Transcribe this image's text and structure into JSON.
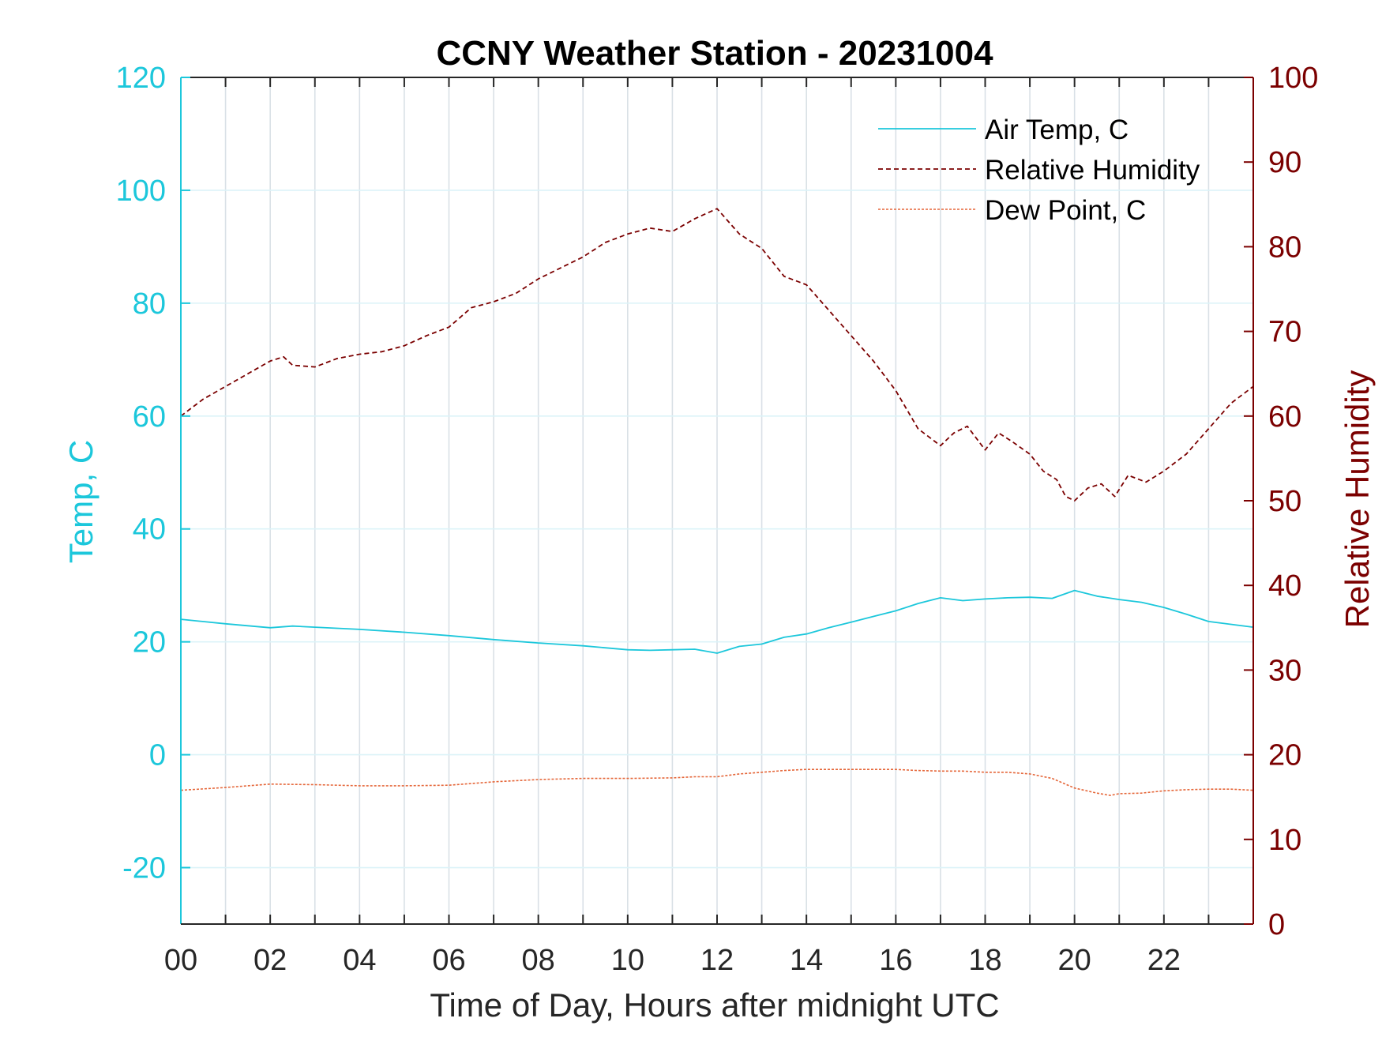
{
  "chart_data": {
    "type": "line",
    "title": "CCNY Weather Station - 20231004",
    "xlabel": "Time of Day, Hours after midnight UTC",
    "ylabel_left": "Temp, C",
    "ylabel_right": "Relative Humidity",
    "xlim": [
      0,
      24
    ],
    "ylim_left": [
      -30,
      120
    ],
    "ylim_right": [
      0,
      100
    ],
    "x_ticks": [
      "00",
      "02",
      "04",
      "06",
      "08",
      "10",
      "12",
      "14",
      "16",
      "18",
      "20",
      "22"
    ],
    "left_ticks": [
      "-20",
      "0",
      "20",
      "40",
      "60",
      "80",
      "100",
      "120"
    ],
    "right_ticks": [
      "0",
      "10",
      "20",
      "30",
      "40",
      "50",
      "60",
      "70",
      "80",
      "90",
      "100"
    ],
    "grid": true,
    "legend_position": "top-right",
    "colors": {
      "air_temp": "#1CC7DB",
      "relative_humidity": "#7B0000",
      "dew_point": "#E5673A",
      "grid": "#D9E0E6"
    },
    "series": [
      {
        "name": "Air Temp, C",
        "axis": "left",
        "style": "solid",
        "x": [
          0,
          1,
          2,
          2.5,
          3,
          4,
          5,
          6,
          7,
          8,
          9,
          10,
          10.5,
          11,
          11.5,
          12,
          12.5,
          13,
          13.5,
          14,
          14.5,
          15,
          15.5,
          16,
          16.5,
          17,
          17.5,
          18,
          18.5,
          19,
          19.5,
          20,
          20.5,
          21,
          21.5,
          22,
          22.5,
          23,
          23.5,
          24
        ],
        "values": [
          24,
          23.2,
          22.5,
          22.8,
          22.6,
          22.2,
          21.7,
          21.1,
          20.4,
          19.8,
          19.3,
          18.6,
          18.5,
          18.6,
          18.7,
          18,
          19.2,
          19.6,
          20.8,
          21.4,
          22.5,
          23.5,
          24.5,
          25.5,
          26.8,
          27.8,
          27.3,
          27.6,
          27.8,
          27.9,
          27.7,
          29.1,
          28.1,
          27.5,
          27,
          26.1,
          24.9,
          23.6,
          23.1,
          22.6
        ]
      },
      {
        "name": "Relative Humidity",
        "axis": "right",
        "style": "dashed",
        "x": [
          0,
          0.5,
          1,
          1.5,
          2,
          2.3,
          2.5,
          3,
          3.5,
          4,
          4.5,
          5,
          5.5,
          6,
          6.5,
          7,
          7.5,
          8,
          8.5,
          9,
          9.5,
          10,
          10.5,
          11,
          11.5,
          12,
          12.5,
          13,
          13.5,
          14,
          14.5,
          15,
          15.5,
          16,
          16.5,
          17,
          17.3,
          17.6,
          18,
          18.3,
          18.6,
          19,
          19.3,
          19.6,
          19.8,
          20,
          20.3,
          20.6,
          20.9,
          21.2,
          21.6,
          22,
          22.5,
          23,
          23.5,
          24
        ],
        "values": [
          60,
          62,
          63.5,
          65,
          66.5,
          67,
          66,
          65.8,
          66.8,
          67.3,
          67.6,
          68.3,
          69.5,
          70.5,
          72.8,
          73.5,
          74.5,
          76.2,
          77.5,
          78.8,
          80.5,
          81.5,
          82.2,
          81.8,
          83.3,
          84.5,
          81.5,
          79.8,
          76.5,
          75.5,
          72.5,
          69.5,
          66.5,
          63,
          58.5,
          56.5,
          58,
          58.8,
          56,
          58,
          57,
          55.5,
          53.5,
          52.5,
          50.5,
          50,
          51.5,
          52,
          50.5,
          53,
          52.2,
          53.5,
          55.5,
          58.5,
          61.5,
          63.5
        ]
      },
      {
        "name": "Dew Point, C",
        "axis": "left",
        "style": "dotted",
        "x": [
          0,
          1,
          2,
          3,
          4,
          5,
          6,
          7,
          8,
          9,
          10,
          11,
          11.5,
          12,
          12.5,
          13,
          13.5,
          14,
          14.5,
          15,
          15.5,
          16,
          16.5,
          17,
          17.5,
          18,
          18.5,
          19,
          19.5,
          20,
          20.5,
          20.8,
          21,
          21.5,
          22,
          22.5,
          23,
          23.5,
          24
        ],
        "values": [
          -6.3,
          -5.8,
          -5.2,
          -5.3,
          -5.5,
          -5.5,
          -5.4,
          -4.8,
          -4.4,
          -4.2,
          -4.2,
          -4.1,
          -3.9,
          -3.9,
          -3.4,
          -3.1,
          -2.8,
          -2.6,
          -2.6,
          -2.6,
          -2.6,
          -2.6,
          -2.8,
          -2.9,
          -2.9,
          -3.1,
          -3.1,
          -3.4,
          -4.2,
          -5.9,
          -6.8,
          -7.2,
          -6.9,
          -6.8,
          -6.4,
          -6.2,
          -6.1,
          -6.1,
          -6.3
        ]
      }
    ]
  }
}
